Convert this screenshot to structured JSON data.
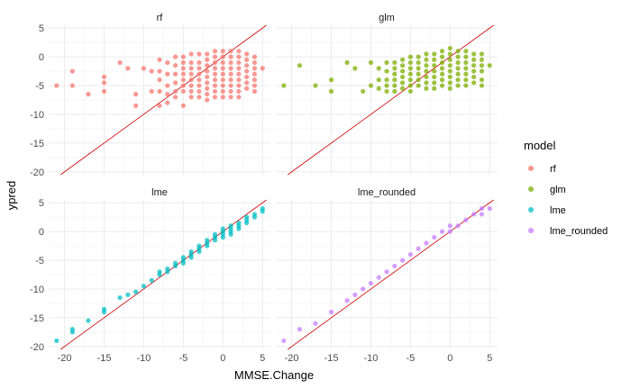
{
  "chart_data": {
    "type": "scatter",
    "facets": [
      "rf",
      "glm",
      "lme",
      "lme_rounded"
    ],
    "xlabel": "MMSE.Change",
    "ylabel": "ypred",
    "xlim": [
      -22,
      6
    ],
    "ylim": [
      -20.5,
      5.5
    ],
    "x_ticks": [
      -20,
      -15,
      -10,
      -5,
      0,
      5
    ],
    "y_ticks": [
      -20,
      -15,
      -10,
      -5,
      0,
      5
    ],
    "x_tick_labels": [
      "-20",
      "-15",
      "-10",
      "-5",
      "0",
      "5"
    ],
    "y_tick_labels": [
      "-20",
      "-15",
      "-10",
      "-5",
      "0",
      "5"
    ],
    "reference_line": {
      "slope": 1,
      "intercept": 0,
      "color": "#cc0000"
    },
    "legend": {
      "title": "model",
      "position": "right",
      "items": [
        {
          "label": "rf",
          "color": "#F8766D"
        },
        {
          "label": "glm",
          "color": "#7CAE00"
        },
        {
          "label": "lme",
          "color": "#00BFC4"
        },
        {
          "label": "lme_rounded",
          "color": "#C77CFF"
        }
      ]
    },
    "grid": true,
    "series": [
      {
        "name": "rf",
        "color": "#F8766D",
        "points": [
          [
            -21,
            -5
          ],
          [
            -19,
            -2.5
          ],
          [
            -19,
            -5
          ],
          [
            -17,
            -6.5
          ],
          [
            -15,
            -3.5
          ],
          [
            -15,
            -4.5
          ],
          [
            -15,
            -6
          ],
          [
            -13,
            -1
          ],
          [
            -12,
            -2
          ],
          [
            -11,
            -6.5
          ],
          [
            -11,
            -8.5
          ],
          [
            -10,
            -2
          ],
          [
            -9,
            -2.5
          ],
          [
            -9,
            -6
          ],
          [
            -8,
            -0.5
          ],
          [
            -8,
            -2.5
          ],
          [
            -8,
            -4
          ],
          [
            -8,
            -6
          ],
          [
            -8,
            -8.5
          ],
          [
            -7,
            -1
          ],
          [
            -7,
            -3
          ],
          [
            -7,
            -5
          ],
          [
            -7,
            -6.5
          ],
          [
            -7,
            -8
          ],
          [
            -6,
            0
          ],
          [
            -6,
            -1.5
          ],
          [
            -6,
            -3
          ],
          [
            -6,
            -4.5
          ],
          [
            -6,
            -6
          ],
          [
            -6,
            -7
          ],
          [
            -5,
            0
          ],
          [
            -5,
            -1
          ],
          [
            -5,
            -2
          ],
          [
            -5,
            -3
          ],
          [
            -5,
            -4
          ],
          [
            -5,
            -5
          ],
          [
            -5,
            -6
          ],
          [
            -5,
            -8.5
          ],
          [
            -4,
            0.5
          ],
          [
            -4,
            -1
          ],
          [
            -4,
            -2
          ],
          [
            -4,
            -3
          ],
          [
            -4,
            -4
          ],
          [
            -4,
            -5
          ],
          [
            -4,
            -6
          ],
          [
            -4,
            -7
          ],
          [
            -3,
            0.5
          ],
          [
            -3,
            -1
          ],
          [
            -3,
            -2
          ],
          [
            -3,
            -3
          ],
          [
            -3,
            -4
          ],
          [
            -3,
            -5
          ],
          [
            -3,
            -6
          ],
          [
            -3,
            -7
          ],
          [
            -2,
            0.5
          ],
          [
            -2,
            -0.5
          ],
          [
            -2,
            -1.5
          ],
          [
            -2,
            -2.5
          ],
          [
            -2,
            -3.5
          ],
          [
            -2,
            -4.5
          ],
          [
            -2,
            -5.5
          ],
          [
            -2,
            -6.5
          ],
          [
            -2,
            -7.5
          ],
          [
            -1,
            1
          ],
          [
            -1,
            0
          ],
          [
            -1,
            -1
          ],
          [
            -1,
            -2
          ],
          [
            -1,
            -3
          ],
          [
            -1,
            -4
          ],
          [
            -1,
            -5
          ],
          [
            -1,
            -6
          ],
          [
            -1,
            -7
          ],
          [
            0,
            1
          ],
          [
            0,
            0
          ],
          [
            0,
            -1
          ],
          [
            0,
            -2
          ],
          [
            0,
            -3
          ],
          [
            0,
            -4
          ],
          [
            0,
            -5
          ],
          [
            0,
            -6
          ],
          [
            0,
            -7
          ],
          [
            1,
            1
          ],
          [
            1,
            0
          ],
          [
            1,
            -1
          ],
          [
            1,
            -2
          ],
          [
            1,
            -3
          ],
          [
            1,
            -4
          ],
          [
            1,
            -5
          ],
          [
            1,
            -6
          ],
          [
            1,
            -7
          ],
          [
            2,
            1
          ],
          [
            2,
            0
          ],
          [
            2,
            -1
          ],
          [
            2,
            -2
          ],
          [
            2,
            -3
          ],
          [
            2,
            -4
          ],
          [
            2,
            -5
          ],
          [
            2,
            -6
          ],
          [
            2,
            -7
          ],
          [
            3,
            0.5
          ],
          [
            3,
            -0.5
          ],
          [
            3,
            -1.5
          ],
          [
            3,
            -2.5
          ],
          [
            3,
            -3.5
          ],
          [
            3,
            -4.5
          ],
          [
            3,
            -5.5
          ],
          [
            4,
            0
          ],
          [
            4,
            -1
          ],
          [
            4,
            -2
          ],
          [
            4,
            -3
          ],
          [
            4,
            -4
          ],
          [
            4,
            -5
          ],
          [
            4,
            -6
          ],
          [
            5,
            -2
          ]
        ]
      },
      {
        "name": "glm",
        "color": "#7CAE00",
        "points": [
          [
            -21,
            -5
          ],
          [
            -19,
            -1.5
          ],
          [
            -17,
            -5
          ],
          [
            -15,
            -4
          ],
          [
            -15,
            -6
          ],
          [
            -13,
            -1
          ],
          [
            -12,
            -2
          ],
          [
            -11,
            -6
          ],
          [
            -10,
            -1
          ],
          [
            -10,
            -5
          ],
          [
            -9,
            -2
          ],
          [
            -9,
            -4
          ],
          [
            -9,
            -5.5
          ],
          [
            -8,
            -1
          ],
          [
            -8,
            -2.5
          ],
          [
            -8,
            -4
          ],
          [
            -8,
            -5
          ],
          [
            -8,
            -6
          ],
          [
            -7,
            -1
          ],
          [
            -7,
            -2
          ],
          [
            -7,
            -3
          ],
          [
            -7,
            -4
          ],
          [
            -7,
            -5
          ],
          [
            -7,
            -6
          ],
          [
            -6,
            -0.5
          ],
          [
            -6,
            -1.5
          ],
          [
            -6,
            -2.5
          ],
          [
            -6,
            -3.5
          ],
          [
            -6,
            -4.5
          ],
          [
            -6,
            -5.5
          ],
          [
            -5,
            0
          ],
          [
            -5,
            -1
          ],
          [
            -5,
            -2
          ],
          [
            -5,
            -3
          ],
          [
            -5,
            -4
          ],
          [
            -5,
            -5
          ],
          [
            -5,
            -6
          ],
          [
            -4,
            0
          ],
          [
            -4,
            -1
          ],
          [
            -4,
            -2
          ],
          [
            -4,
            -3
          ],
          [
            -4,
            -4
          ],
          [
            -4,
            -5
          ],
          [
            -3,
            0.5
          ],
          [
            -3,
            -0.5
          ],
          [
            -3,
            -1.5
          ],
          [
            -3,
            -2.5
          ],
          [
            -3,
            -3.5
          ],
          [
            -3,
            -4.5
          ],
          [
            -3,
            -5.5
          ],
          [
            -2,
            0.5
          ],
          [
            -2,
            -0.5
          ],
          [
            -2,
            -1.5
          ],
          [
            -2,
            -2.5
          ],
          [
            -2,
            -3.5
          ],
          [
            -2,
            -4.5
          ],
          [
            -2,
            -5.5
          ],
          [
            -1,
            1
          ],
          [
            -1,
            0
          ],
          [
            -1,
            -1
          ],
          [
            -1,
            -2
          ],
          [
            -1,
            -3
          ],
          [
            -1,
            -4
          ],
          [
            -1,
            -5
          ],
          [
            0,
            1.5
          ],
          [
            0,
            0.5
          ],
          [
            0,
            -0.5
          ],
          [
            0,
            -1.5
          ],
          [
            0,
            -2.5
          ],
          [
            0,
            -3.5
          ],
          [
            0,
            -4.5
          ],
          [
            0,
            -5.5
          ],
          [
            1,
            1
          ],
          [
            1,
            0
          ],
          [
            1,
            -1
          ],
          [
            1,
            -2
          ],
          [
            1,
            -3
          ],
          [
            1,
            -4
          ],
          [
            1,
            -5
          ],
          [
            2,
            1
          ],
          [
            2,
            0
          ],
          [
            2,
            -1
          ],
          [
            2,
            -2
          ],
          [
            2,
            -3
          ],
          [
            2,
            -4
          ],
          [
            2,
            -5
          ],
          [
            3,
            0.5
          ],
          [
            3,
            -0.5
          ],
          [
            3,
            -1.5
          ],
          [
            3,
            -2.5
          ],
          [
            3,
            -3.5
          ],
          [
            3,
            -4.5
          ],
          [
            4,
            0.5
          ],
          [
            4,
            -0.5
          ],
          [
            4,
            -1.5
          ],
          [
            4,
            -2.5
          ],
          [
            4,
            -4
          ],
          [
            4,
            -5
          ],
          [
            5,
            -1.5
          ]
        ]
      },
      {
        "name": "lme",
        "color": "#00BFC4",
        "points": [
          [
            -21,
            -19
          ],
          [
            -19,
            -17
          ],
          [
            -19,
            -17.5
          ],
          [
            -17,
            -15.5
          ],
          [
            -15,
            -13.5
          ],
          [
            -15,
            -14
          ],
          [
            -13,
            -11.5
          ],
          [
            -12,
            -11
          ],
          [
            -11,
            -10.5
          ],
          [
            -10,
            -9.5
          ],
          [
            -9,
            -8.5
          ],
          [
            -8,
            -7.5
          ],
          [
            -8,
            -7
          ],
          [
            -7,
            -6.5
          ],
          [
            -7,
            -7
          ],
          [
            -6,
            -5.5
          ],
          [
            -6,
            -6
          ],
          [
            -5,
            -4.5
          ],
          [
            -5,
            -5
          ],
          [
            -5,
            -5.5
          ],
          [
            -4,
            -3.5
          ],
          [
            -4,
            -4
          ],
          [
            -4,
            -4.5
          ],
          [
            -3,
            -2.5
          ],
          [
            -3,
            -3
          ],
          [
            -3,
            -3.5
          ],
          [
            -2,
            -1.5
          ],
          [
            -2,
            -2
          ],
          [
            -2,
            -2.5
          ],
          [
            -1,
            -0.5
          ],
          [
            -1,
            -1
          ],
          [
            -1,
            -1.5
          ],
          [
            0,
            0.5
          ],
          [
            0,
            0
          ],
          [
            0,
            -0.5
          ],
          [
            0,
            -1
          ],
          [
            1,
            1
          ],
          [
            1,
            0.5
          ],
          [
            1,
            0
          ],
          [
            1,
            -0.5
          ],
          [
            2,
            1.5
          ],
          [
            2,
            1
          ],
          [
            2,
            0.5
          ],
          [
            3,
            2.5
          ],
          [
            3,
            2
          ],
          [
            3,
            1.5
          ],
          [
            4,
            3
          ],
          [
            4,
            2.5
          ],
          [
            5,
            4
          ],
          [
            5,
            3.5
          ]
        ]
      },
      {
        "name": "lme_rounded",
        "color": "#C77CFF",
        "points": [
          [
            -21,
            -19
          ],
          [
            -19,
            -17
          ],
          [
            -17,
            -16
          ],
          [
            -15,
            -14
          ],
          [
            -13,
            -12
          ],
          [
            -12,
            -11
          ],
          [
            -11,
            -10
          ],
          [
            -10,
            -9
          ],
          [
            -9,
            -8
          ],
          [
            -8,
            -7
          ],
          [
            -7,
            -6
          ],
          [
            -6,
            -5
          ],
          [
            -5,
            -4
          ],
          [
            -4,
            -3
          ],
          [
            -3,
            -2
          ],
          [
            -2,
            -1
          ],
          [
            -1,
            0
          ],
          [
            0,
            0
          ],
          [
            0,
            1
          ],
          [
            1,
            1
          ],
          [
            2,
            2
          ],
          [
            3,
            3
          ],
          [
            4,
            3
          ],
          [
            4,
            4
          ],
          [
            5,
            4
          ]
        ]
      }
    ]
  }
}
